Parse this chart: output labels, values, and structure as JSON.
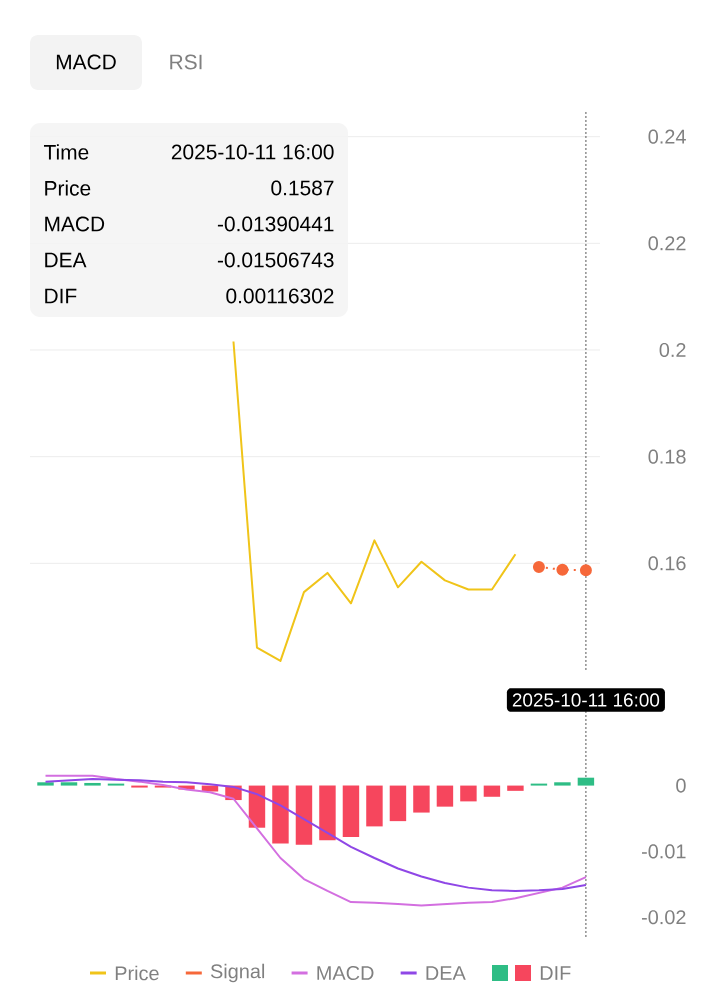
{
  "chart_data": [
    {
      "type": "line",
      "categories": [
        null,
        null,
        null,
        null,
        null,
        null,
        null,
        null,
        null,
        null,
        null,
        null,
        null,
        null,
        null,
        null,
        null,
        null,
        null,
        null,
        null,
        null,
        null,
        null
      ],
      "series": [
        {
          "name": "Price",
          "color": "#f0c419",
          "values": [
            null,
            null,
            null,
            null,
            null,
            null,
            null,
            null,
            0.2016,
            0.1442,
            0.1417,
            0.1546,
            0.1582,
            0.1525,
            0.1643,
            0.1555,
            0.1603,
            0.1568,
            0.1551,
            0.1551,
            0.1617,
            null,
            null,
            null
          ]
        },
        {
          "name": "Signal",
          "color": "#f6683a",
          "marker": "circle",
          "line_style": "dotted",
          "values": [
            null,
            null,
            null,
            null,
            null,
            null,
            null,
            null,
            null,
            null,
            null,
            null,
            null,
            null,
            null,
            null,
            null,
            null,
            null,
            null,
            null,
            0.1593,
            0.1588,
            0.1587
          ]
        }
      ],
      "ylim": [
        0.14,
        0.245
      ],
      "yticks": [
        0.16,
        0.18,
        0.2,
        0.22,
        0.24
      ],
      "grid": "y",
      "legend": "bottom",
      "annotations": [
        "MACD",
        "RSI",
        "Time",
        "2025-10-11 16:00",
        "Price",
        "0.1587",
        "MACD",
        "-0.01390441",
        "DEA",
        "-0.01506743",
        "DIF",
        "0.00116302"
      ]
    },
    {
      "type": "line",
      "categories": [
        null,
        null,
        null,
        null,
        null,
        null,
        null,
        null,
        null,
        null,
        null,
        null,
        null,
        null,
        null,
        null,
        null,
        null,
        null,
        null,
        null,
        null,
        null,
        null
      ],
      "series": [
        {
          "name": "MACD",
          "color": "#d36fe0",
          "values": [
            0.0015,
            0.0015,
            0.0015,
            0.001,
            0.0006,
            0.0001,
            -0.0006,
            -0.001,
            -0.002,
            -0.0065,
            -0.011,
            -0.0142,
            -0.016,
            -0.0177,
            -0.0178,
            -0.018,
            -0.0182,
            -0.018,
            -0.0178,
            -0.0177,
            -0.0171,
            -0.0163,
            -0.0155,
            -0.0139
          ]
        },
        {
          "name": "DEA",
          "color": "#8f47e6",
          "values": [
            0.0006,
            0.0008,
            0.001,
            0.0009,
            0.0008,
            0.0006,
            0.0005,
            0.0002,
            -0.0002,
            -0.0013,
            -0.003,
            -0.0051,
            -0.0072,
            -0.0093,
            -0.011,
            -0.0126,
            -0.0138,
            -0.0148,
            -0.0155,
            -0.0159,
            -0.016,
            -0.0159,
            -0.0157,
            -0.0151
          ]
        },
        {
          "name": "DIF",
          "type": "bar",
          "values": [
            0.0005,
            0.0005,
            0.0004,
            0.0003,
            -0.0003,
            -0.0003,
            -0.0006,
            -0.0009,
            -0.0022,
            -0.0064,
            -0.0088,
            -0.009,
            -0.0083,
            -0.0078,
            -0.0062,
            -0.0054,
            -0.0041,
            -0.0032,
            -0.0024,
            -0.0017,
            -0.0008,
            0.0003,
            0.0005,
            0.0012
          ],
          "colors": [
            "#2ebd85",
            "#2ebd85",
            "#2ebd85",
            "#2ebd85",
            "#f6465d",
            "#f6465d",
            "#f6465d",
            "#f6465d",
            "#f6465d",
            "#f6465d",
            "#f6465d",
            "#f6465d",
            "#f6465d",
            "#f6465d",
            "#f6465d",
            "#f6465d",
            "#f6465d",
            "#f6465d",
            "#f6465d",
            "#f6465d",
            "#f6465d",
            "#2ebd85",
            "#2ebd85",
            "#2ebd85"
          ]
        }
      ],
      "ylim": [
        -0.023,
        0.013
      ],
      "yticks": [
        0,
        -0.01,
        -0.02
      ],
      "legend": "bottom",
      "annotations": [
        "2025-10-11 16:00"
      ]
    }
  ]
}
